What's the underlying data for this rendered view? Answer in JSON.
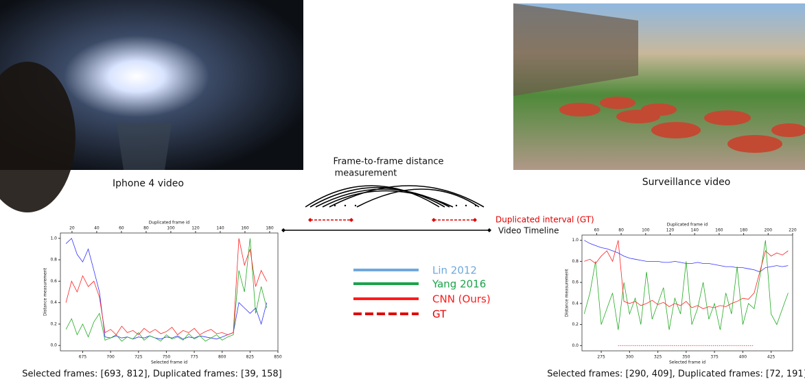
{
  "photos": {
    "left_caption": "Iphone 4 video",
    "right_caption": "Surveillance video"
  },
  "diagram": {
    "measure_lines": [
      "Frame-to-frame distance",
      "measurement"
    ],
    "interval_label": "Duplicated interval (GT)",
    "timeline_label": "Video Timeline"
  },
  "legend": [
    {
      "label": "Lin 2012",
      "color": "#6fa8dc",
      "dash": false
    },
    {
      "label": "Yang 2016",
      "color": "#1aa34a",
      "dash": false
    },
    {
      "label": "CNN (Ours)",
      "color": "#ff1a1a",
      "dash": false
    },
    {
      "label": "GT",
      "color": "#e00000",
      "dash": true
    }
  ],
  "chart_data": [
    {
      "type": "line",
      "x_label": "Selected frame id",
      "x2_label": "Duplicated frame id",
      "y_label": "Distance measurement",
      "caption": "Selected frames: [693, 812], Duplicated frames: [39, 158]",
      "xlim": [
        655,
        850
      ],
      "xticks": [
        675,
        700,
        725,
        750,
        775,
        800,
        825,
        850
      ],
      "x2lim": [
        10.6,
        186.7
      ],
      "x2ticks": [
        20,
        40,
        60,
        80,
        100,
        120,
        140,
        160,
        180
      ],
      "ylim": [
        -0.05,
        1.05
      ],
      "yticks": [
        {
          "value": 0,
          "label": "0.0"
        },
        0.2,
        0.4,
        0.6,
        0.8,
        {
          "value": 1,
          "label": "1.0"
        }
      ],
      "x": [
        660,
        665,
        670,
        675,
        680,
        685,
        690,
        695,
        700,
        705,
        710,
        715,
        720,
        725,
        730,
        735,
        740,
        745,
        750,
        755,
        760,
        765,
        770,
        775,
        780,
        785,
        790,
        795,
        800,
        805,
        810,
        815,
        820,
        825,
        830,
        835,
        840
      ],
      "series": [
        {
          "color": "#3030ff",
          "dash": false,
          "values": [
            0.95,
            1.0,
            0.85,
            0.78,
            0.9,
            0.7,
            0.5,
            0.08,
            0.07,
            0.09,
            0.07,
            0.08,
            0.06,
            0.08,
            0.07,
            0.09,
            0.07,
            0.06,
            0.08,
            0.07,
            0.09,
            0.06,
            0.08,
            0.07,
            0.09,
            0.08,
            0.07,
            0.06,
            0.08,
            0.1,
            0.12,
            0.4,
            0.35,
            0.3,
            0.35,
            0.2,
            0.4
          ]
        },
        {
          "color": "#22aa22",
          "dash": false,
          "values": [
            0.15,
            0.25,
            0.1,
            0.2,
            0.08,
            0.22,
            0.3,
            0.05,
            0.07,
            0.1,
            0.04,
            0.08,
            0.06,
            0.12,
            0.05,
            0.09,
            0.07,
            0.04,
            0.1,
            0.06,
            0.08,
            0.05,
            0.11,
            0.06,
            0.09,
            0.04,
            0.07,
            0.1,
            0.05,
            0.08,
            0.1,
            0.7,
            0.5,
            1.0,
            0.3,
            0.55,
            0.35
          ]
        },
        {
          "color": "#ff2020",
          "dash": false,
          "values": [
            0.4,
            0.6,
            0.5,
            0.65,
            0.55,
            0.6,
            0.45,
            0.12,
            0.15,
            0.1,
            0.18,
            0.12,
            0.14,
            0.1,
            0.16,
            0.12,
            0.15,
            0.11,
            0.13,
            0.17,
            0.1,
            0.14,
            0.12,
            0.16,
            0.1,
            0.13,
            0.15,
            0.11,
            0.12,
            0.1,
            0.12,
            1.0,
            0.75,
            0.9,
            0.55,
            0.7,
            0.6
          ]
        }
      ]
    },
    {
      "type": "line",
      "x_label": "Selected frame id",
      "x2_label": "Duplicated frame id",
      "y_label": "Distance measurement",
      "caption": "Selected frames: [290, 409], Duplicated frames: [72, 191]",
      "xlim": [
        258,
        444
      ],
      "xticks": [
        275,
        300,
        325,
        350,
        375,
        400,
        425
      ],
      "x2lim": [
        48,
        220
      ],
      "x2ticks": [
        60,
        80,
        100,
        120,
        140,
        160,
        180,
        200,
        220
      ],
      "ylim": [
        -0.05,
        1.05
      ],
      "yticks": [
        {
          "value": 0,
          "label": "0.0"
        },
        0.2,
        0.4,
        0.6,
        0.8,
        {
          "value": 1,
          "label": "1.0"
        }
      ],
      "x": [
        260,
        265,
        270,
        275,
        280,
        285,
        290,
        295,
        300,
        305,
        310,
        315,
        320,
        325,
        330,
        335,
        340,
        345,
        350,
        355,
        360,
        365,
        370,
        375,
        380,
        385,
        390,
        395,
        400,
        405,
        410,
        415,
        420,
        425,
        430,
        435,
        440
      ],
      "series": [
        {
          "color": "#3030ff",
          "dash": false,
          "values": [
            1.0,
            0.97,
            0.95,
            0.93,
            0.92,
            0.9,
            0.88,
            0.85,
            0.83,
            0.82,
            0.81,
            0.8,
            0.8,
            0.8,
            0.79,
            0.79,
            0.8,
            0.79,
            0.78,
            0.78,
            0.79,
            0.78,
            0.78,
            0.77,
            0.76,
            0.75,
            0.75,
            0.74,
            0.74,
            0.73,
            0.72,
            0.7,
            0.74,
            0.75,
            0.76,
            0.75,
            0.76
          ]
        },
        {
          "color": "#22aa22",
          "dash": false,
          "values": [
            0.3,
            0.5,
            0.8,
            0.2,
            0.35,
            0.5,
            0.15,
            0.6,
            0.3,
            0.45,
            0.2,
            0.7,
            0.25,
            0.4,
            0.55,
            0.15,
            0.45,
            0.3,
            0.8,
            0.2,
            0.35,
            0.6,
            0.25,
            0.4,
            0.15,
            0.5,
            0.3,
            0.75,
            0.2,
            0.4,
            0.35,
            0.65,
            1.0,
            0.3,
            0.2,
            0.35,
            0.5
          ]
        },
        {
          "color": "#ff2020",
          "dash": false,
          "values": [
            0.8,
            0.82,
            0.78,
            0.85,
            0.9,
            0.8,
            1.0,
            0.42,
            0.4,
            0.42,
            0.38,
            0.4,
            0.43,
            0.39,
            0.41,
            0.37,
            0.4,
            0.38,
            0.42,
            0.36,
            0.38,
            0.35,
            0.37,
            0.36,
            0.38,
            0.37,
            0.4,
            0.42,
            0.45,
            0.44,
            0.5,
            0.7,
            0.9,
            0.85,
            0.88,
            0.86,
            0.9
          ]
        },
        {
          "color": "#ff2020",
          "dash": true,
          "x": [
            290,
            409
          ],
          "values": [
            0,
            0
          ]
        }
      ]
    }
  ]
}
